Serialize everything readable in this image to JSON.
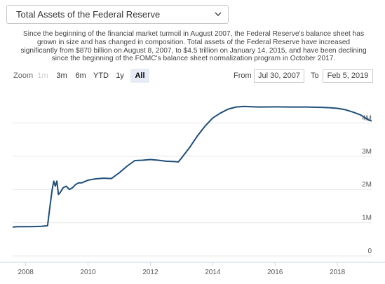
{
  "selector": {
    "selected": "Total Assets of the Federal Reserve",
    "icon": "chevron-down-icon"
  },
  "description": "Since the beginning of the financial market turmoil in August 2007, the Federal Reserve's balance sheet has grown in size and has changed in composition. Total assets of the Federal Reserve have increased significantly from $870 billion on August 8, 2007, to $4.5 trillion on January 14, 2015, and have been declining since the beginning of the FOMC's balance sheet normalization program in October 2017.",
  "range_selector": {
    "zoom_label": "Zoom",
    "buttons": [
      {
        "label": "1m",
        "state": "disabled"
      },
      {
        "label": "3m",
        "state": "normal"
      },
      {
        "label": "6m",
        "state": "normal"
      },
      {
        "label": "YTD",
        "state": "normal"
      },
      {
        "label": "1y",
        "state": "normal"
      },
      {
        "label": "All",
        "state": "active"
      }
    ],
    "from_label": "From",
    "from_value": "Jul 30, 2007",
    "to_label": "To",
    "to_value": "Feb 5, 2019"
  },
  "colors": {
    "line": "#1f4e79",
    "grid": "#e6e6e6",
    "active_button": "#e6ebf5"
  },
  "chart_data": {
    "type": "line",
    "x_start": "Jul 30, 2007",
    "x_end": "Feb 5, 2019",
    "xlim": [
      2007.58,
      2019.1
    ],
    "ylim": [
      0,
      5000000
    ],
    "x_ticks": [
      "2008",
      "2010",
      "2012",
      "2014",
      "2016",
      "2018"
    ],
    "x_tick_values": [
      2008,
      2010,
      2012,
      2014,
      2016,
      2018
    ],
    "y_ticks": [
      "0",
      "1M",
      "2M",
      "3M",
      "4M"
    ],
    "y_tick_values": [
      0,
      1000000,
      2000000,
      3000000,
      4000000
    ],
    "grid": true,
    "legend": "none",
    "series": [
      {
        "x": [
          2007.58,
          2007.75,
          2008.0,
          2008.25,
          2008.5,
          2008.7,
          2008.78,
          2008.85,
          2008.9,
          2008.95,
          2009.0,
          2009.05,
          2009.1,
          2009.2,
          2009.3,
          2009.4,
          2009.5,
          2009.6,
          2009.7,
          2009.8,
          2010.0,
          2010.25,
          2010.5,
          2010.75,
          2011.0,
          2011.25,
          2011.5,
          2011.75,
          2012.0,
          2012.25,
          2012.5,
          2012.75,
          2012.9,
          2013.0,
          2013.25,
          2013.5,
          2013.75,
          2014.0,
          2014.25,
          2014.5,
          2014.75,
          2015.0,
          2015.25,
          2015.5,
          2016.0,
          2016.5,
          2017.0,
          2017.5,
          2017.75,
          2018.0,
          2018.25,
          2018.5,
          2018.75,
          2019.0,
          2019.1
        ],
        "y": [
          870000,
          880000,
          880000,
          885000,
          890000,
          910000,
          1500000,
          2000000,
          2250000,
          2100000,
          2250000,
          1850000,
          1900000,
          2050000,
          2100000,
          2000000,
          2050000,
          2150000,
          2200000,
          2200000,
          2280000,
          2320000,
          2340000,
          2330000,
          2500000,
          2700000,
          2870000,
          2880000,
          2900000,
          2880000,
          2850000,
          2840000,
          2830000,
          2950000,
          3250000,
          3600000,
          3900000,
          4150000,
          4300000,
          4420000,
          4480000,
          4500000,
          4490000,
          4480000,
          4485000,
          4480000,
          4480000,
          4470000,
          4460000,
          4440000,
          4400000,
          4330000,
          4240000,
          4090000,
          4060000
        ]
      }
    ]
  }
}
